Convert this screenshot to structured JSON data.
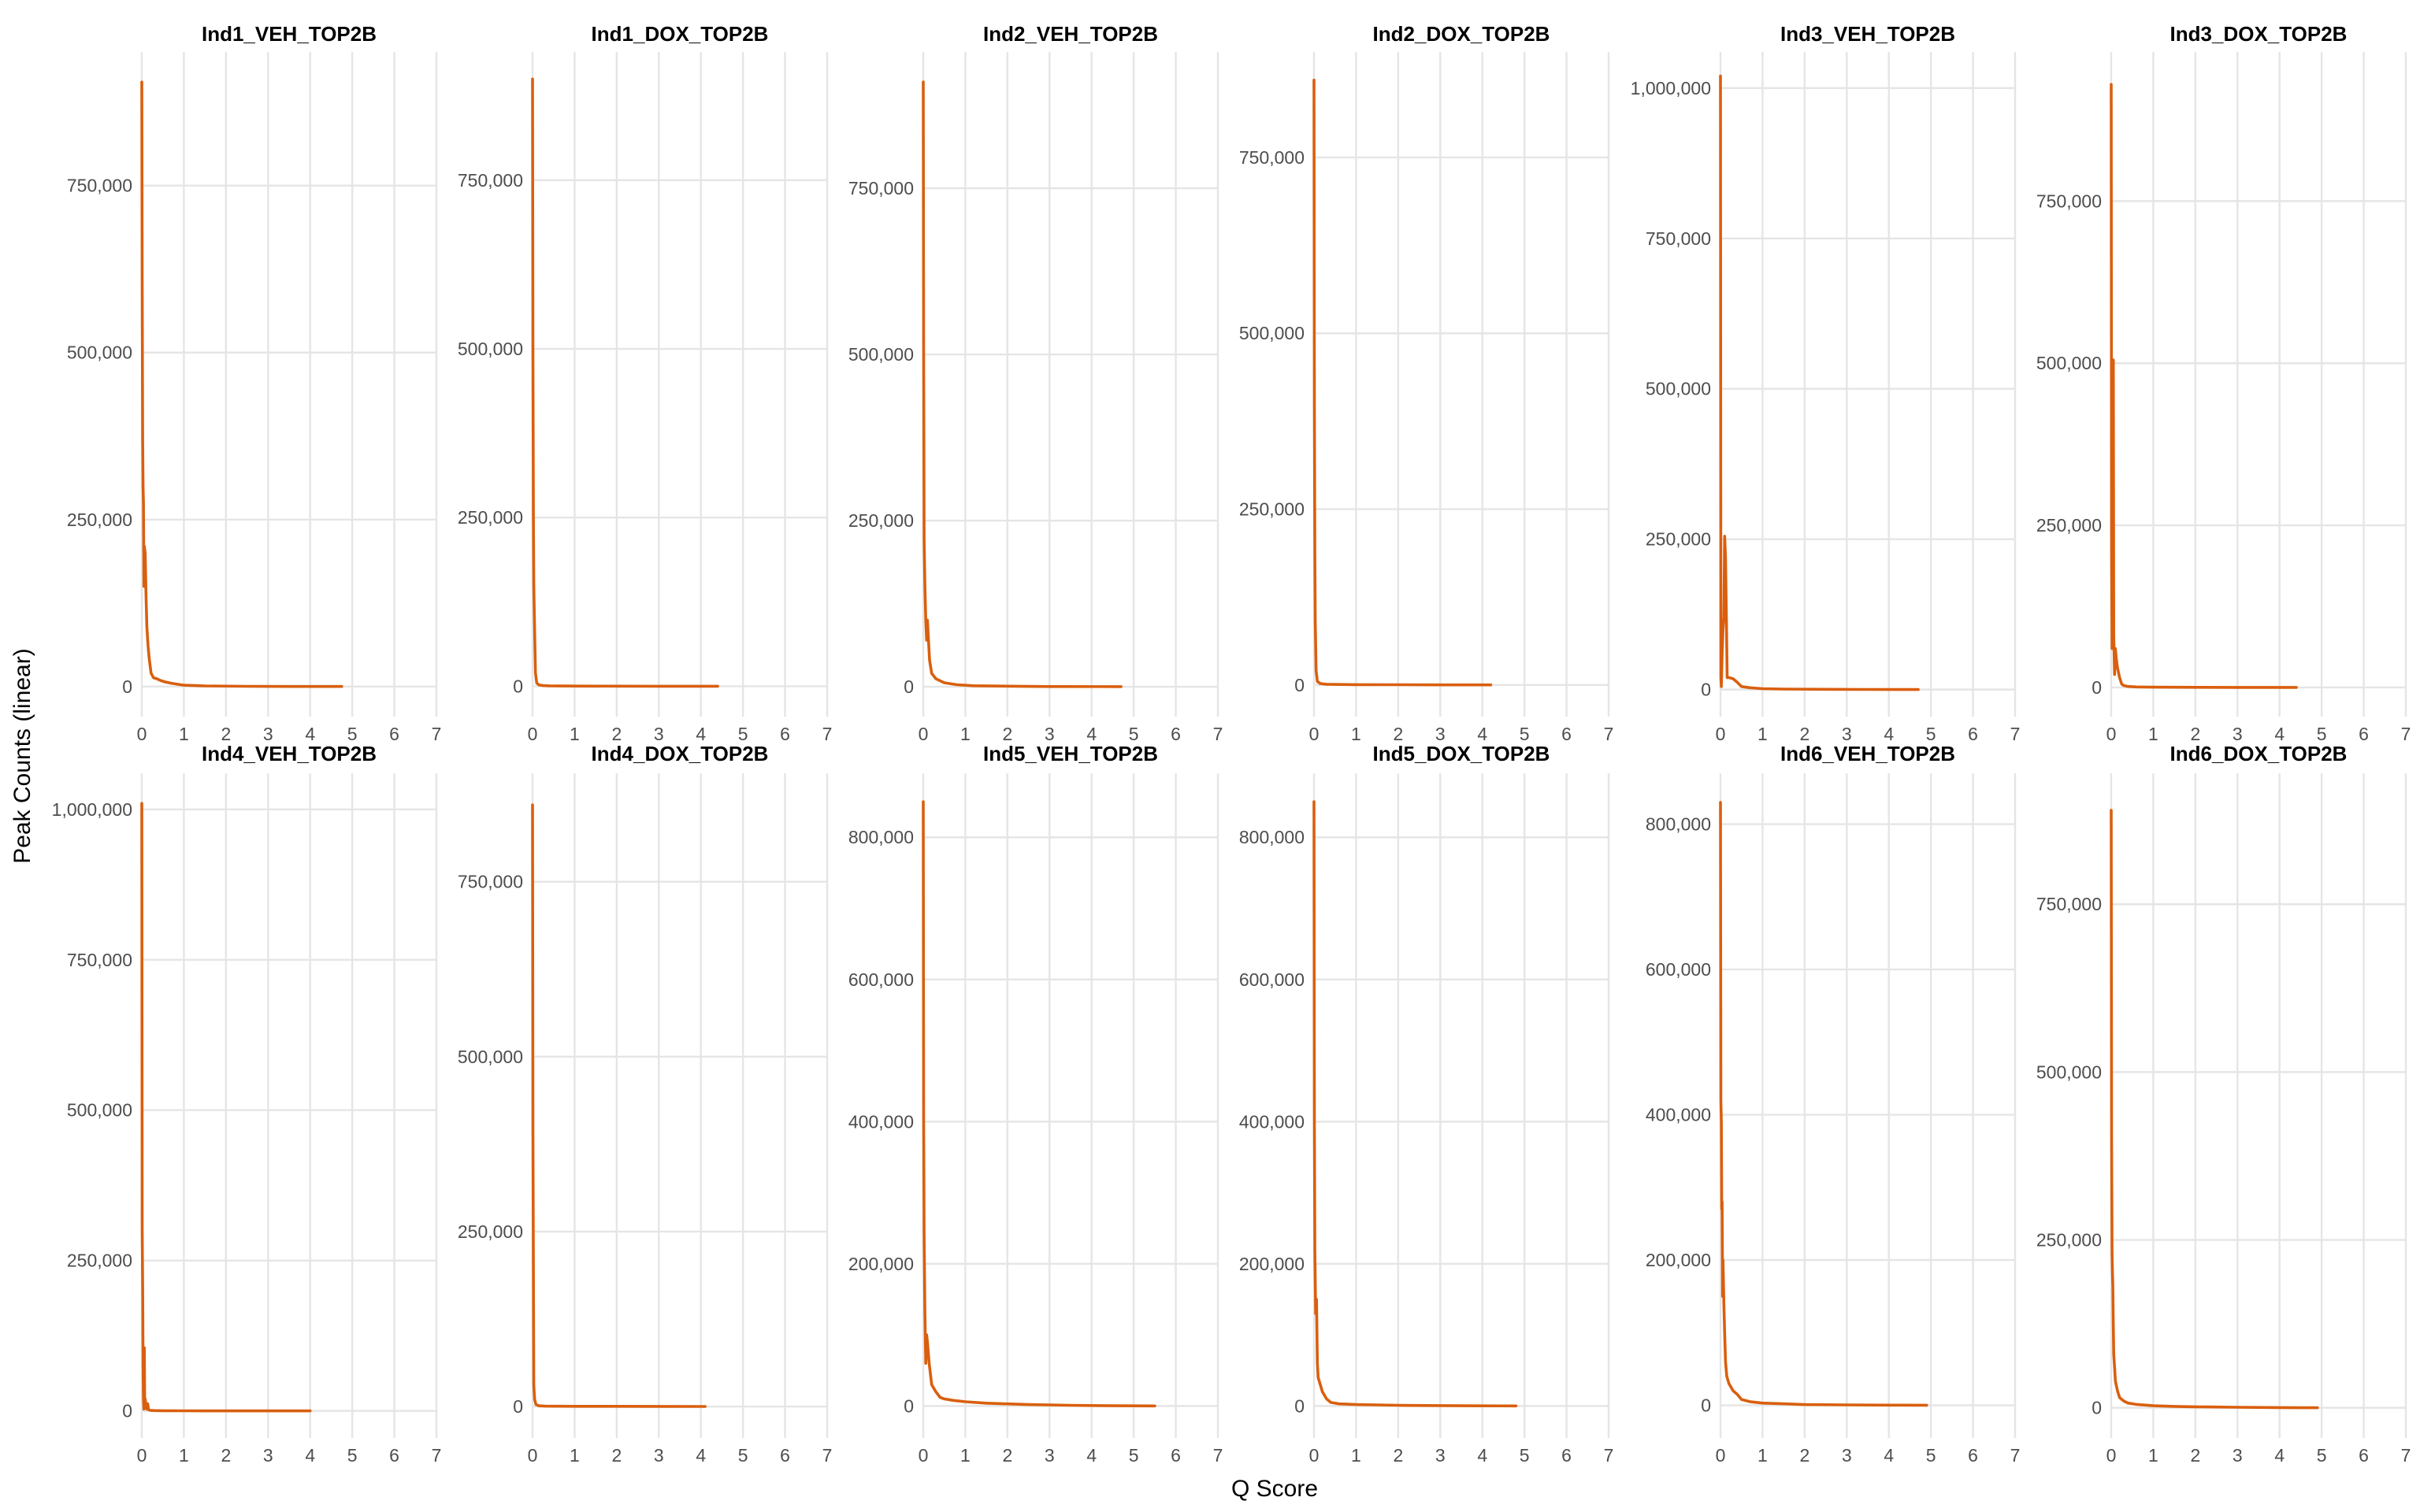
{
  "chart_data": {
    "type": "line",
    "facets": "2 rows x 6 columns, independent y scales",
    "xlabel": "Q Score",
    "ylabel": "Peak Counts (linear)",
    "xlim": [
      0,
      7
    ],
    "x_ticks": [
      0,
      1,
      2,
      3,
      4,
      5,
      6,
      7
    ],
    "grid": true,
    "line_color": "#D95F0E",
    "panels": [
      {
        "title": "Ind1_VEH_TOP2B",
        "ylim": [
          -45000,
          950000
        ],
        "y_ticks": [
          0,
          250000,
          500000,
          750000
        ],
        "y_tick_labels": [
          "0",
          "250,000",
          "500,000",
          "750,000"
        ],
        "x": [
          0,
          0.01,
          0.02,
          0.03,
          0.04,
          0.05,
          0.06,
          0.08,
          0.1,
          0.12,
          0.15,
          0.18,
          0.22,
          0.28,
          0.35,
          0.45,
          0.55,
          0.7,
          1.0,
          1.5,
          2.5,
          3.5,
          4.75
        ],
        "y": [
          905000,
          600000,
          370000,
          300000,
          275000,
          150000,
          210000,
          200000,
          140000,
          90000,
          60000,
          40000,
          20000,
          13000,
          12000,
          9000,
          7000,
          5000,
          2000,
          1000,
          400,
          200,
          100
        ]
      },
      {
        "title": "Ind1_DOX_TOP2B",
        "ylim": [
          -45000,
          940000
        ],
        "y_ticks": [
          0,
          250000,
          500000,
          750000
        ],
        "y_tick_labels": [
          "0",
          "250,000",
          "500,000",
          "750,000"
        ],
        "x": [
          0,
          0.01,
          0.02,
          0.03,
          0.05,
          0.07,
          0.1,
          0.15,
          0.25,
          0.4,
          1.0,
          2.0,
          3.0,
          4.4
        ],
        "y": [
          900000,
          500000,
          250000,
          150000,
          80000,
          20000,
          5000,
          2000,
          1000,
          600,
          300,
          200,
          100,
          50
        ]
      },
      {
        "title": "Ind2_VEH_TOP2B",
        "ylim": [
          -45000,
          955000
        ],
        "y_ticks": [
          0,
          250000,
          500000,
          750000
        ],
        "y_tick_labels": [
          "0",
          "250,000",
          "500,000",
          "750,000"
        ],
        "x": [
          0,
          0.01,
          0.02,
          0.04,
          0.06,
          0.08,
          0.1,
          0.15,
          0.2,
          0.3,
          0.5,
          0.8,
          1.2,
          2.0,
          3.0,
          4.7
        ],
        "y": [
          910000,
          500000,
          220000,
          150000,
          100000,
          70000,
          100000,
          40000,
          20000,
          12000,
          6000,
          3000,
          1500,
          800,
          300,
          100
        ]
      },
      {
        "title": "Ind2_DOX_TOP2B",
        "ylim": [
          -45000,
          900000
        ],
        "y_ticks": [
          0,
          250000,
          500000,
          750000
        ],
        "y_tick_labels": [
          "0",
          "250,000",
          "500,000",
          "750,000"
        ],
        "x": [
          0,
          0.01,
          0.02,
          0.03,
          0.05,
          0.08,
          0.15,
          0.3,
          1.0,
          2.0,
          3.0,
          4.2
        ],
        "y": [
          860000,
          400000,
          185000,
          90000,
          20000,
          5000,
          2000,
          1000,
          500,
          300,
          150,
          80
        ]
      },
      {
        "title": "Ind3_VEH_TOP2B",
        "ylim": [
          -45000,
          1060000
        ],
        "y_ticks": [
          0,
          250000,
          500000,
          750000,
          1000000
        ],
        "y_tick_labels": [
          "0",
          "250,000",
          "500,000",
          "750,000",
          "1,000,000"
        ],
        "x": [
          0,
          0.01,
          0.02,
          0.04,
          0.06,
          0.08,
          0.1,
          0.12,
          0.14,
          0.16,
          0.2,
          0.3,
          0.4,
          0.5,
          0.7,
          1.0,
          1.5,
          2.5,
          3.5,
          4.7
        ],
        "y": [
          1020000,
          20000,
          5000,
          60000,
          100000,
          120000,
          255000,
          220000,
          120000,
          20000,
          20000,
          18000,
          12000,
          5000,
          3000,
          1500,
          800,
          400,
          200,
          100
        ]
      },
      {
        "title": "Ind3_DOX_TOP2B",
        "ylim": [
          -45000,
          980000
        ],
        "y_ticks": [
          0,
          250000,
          500000,
          750000
        ],
        "y_tick_labels": [
          "0",
          "250,000",
          "500,000",
          "750,000"
        ],
        "x": [
          0,
          0.01,
          0.02,
          0.03,
          0.04,
          0.05,
          0.06,
          0.08,
          0.1,
          0.12,
          0.15,
          0.2,
          0.25,
          0.3,
          0.4,
          0.6,
          1.0,
          2.0,
          3.0,
          4.4
        ],
        "y": [
          930000,
          200000,
          60000,
          100000,
          300000,
          505000,
          80000,
          20000,
          60000,
          45000,
          30000,
          15000,
          5000,
          3000,
          1500,
          800,
          400,
          200,
          100,
          50
        ]
      },
      {
        "title": "Ind4_VEH_TOP2B",
        "ylim": [
          -45000,
          1060000
        ],
        "y_ticks": [
          0,
          250000,
          500000,
          750000,
          1000000
        ],
        "y_tick_labels": [
          "0",
          "250,000",
          "500,000",
          "750,000",
          "1,000,000"
        ],
        "x": [
          0,
          0.01,
          0.02,
          0.03,
          0.04,
          0.05,
          0.06,
          0.07,
          0.08,
          0.1,
          0.12,
          0.14,
          0.16,
          0.2,
          0.3,
          0.5,
          1.0,
          2.0,
          3.0,
          4.0
        ],
        "y": [
          1010000,
          300000,
          205000,
          80000,
          20000,
          3000,
          105000,
          5000,
          20000,
          8000,
          3000,
          12000,
          2000,
          1000,
          600,
          300,
          200,
          100,
          60,
          30
        ]
      },
      {
        "title": "Ind4_DOX_TOP2B",
        "ylim": [
          -45000,
          905000
        ],
        "y_ticks": [
          0,
          250000,
          500000,
          750000
        ],
        "y_tick_labels": [
          "0",
          "250,000",
          "500,000",
          "750,000"
        ],
        "x": [
          0,
          0.01,
          0.02,
          0.03,
          0.05,
          0.08,
          0.15,
          0.3,
          1.0,
          2.0,
          3.0,
          4.1
        ],
        "y": [
          860000,
          400000,
          200000,
          30000,
          10000,
          3000,
          1000,
          500,
          300,
          200,
          100,
          50
        ]
      },
      {
        "title": "Ind5_VEH_TOP2B",
        "ylim": [
          -45000,
          890000
        ],
        "y_ticks": [
          0,
          200000,
          400000,
          600000,
          800000
        ],
        "y_tick_labels": [
          "0",
          "200,000",
          "400,000",
          "600,000",
          "800,000"
        ],
        "x": [
          0,
          0.01,
          0.02,
          0.04,
          0.06,
          0.08,
          0.1,
          0.14,
          0.2,
          0.3,
          0.4,
          0.5,
          0.7,
          1.0,
          1.5,
          2.0,
          2.5,
          3.0,
          3.5,
          4.0,
          4.5,
          5.5
        ],
        "y": [
          850000,
          400000,
          240000,
          130000,
          60000,
          100000,
          90000,
          60000,
          30000,
          20000,
          12000,
          10000,
          8000,
          6000,
          4000,
          3000,
          2000,
          1500,
          1000,
          600,
          300,
          100
        ]
      },
      {
        "title": "Ind5_DOX_TOP2B",
        "ylim": [
          -45000,
          890000
        ],
        "y_ticks": [
          0,
          200000,
          400000,
          600000,
          800000
        ],
        "y_tick_labels": [
          "0",
          "200,000",
          "400,000",
          "600,000",
          "800,000"
        ],
        "x": [
          0,
          0.01,
          0.02,
          0.04,
          0.06,
          0.08,
          0.1,
          0.15,
          0.2,
          0.3,
          0.4,
          0.6,
          0.8,
          1.0,
          1.5,
          2.0,
          3.0,
          4.0,
          4.8
        ],
        "y": [
          850000,
          400000,
          220000,
          130000,
          150000,
          60000,
          40000,
          30000,
          20000,
          10000,
          5000,
          3000,
          2500,
          2000,
          1500,
          1000,
          500,
          200,
          100
        ]
      },
      {
        "title": "Ind6_VEH_TOP2B",
        "ylim": [
          -45000,
          870000
        ],
        "y_ticks": [
          0,
          200000,
          400000,
          600000,
          800000
        ],
        "y_tick_labels": [
          "0",
          "200,000",
          "400,000",
          "600,000",
          "800,000"
        ],
        "x": [
          0,
          0.01,
          0.02,
          0.03,
          0.04,
          0.05,
          0.06,
          0.08,
          0.1,
          0.12,
          0.15,
          0.2,
          0.3,
          0.4,
          0.5,
          0.7,
          1.0,
          1.5,
          2.0,
          3.0,
          4.0,
          4.9
        ],
        "y": [
          830000,
          420000,
          390000,
          270000,
          280000,
          150000,
          200000,
          140000,
          100000,
          60000,
          40000,
          30000,
          20000,
          15000,
          8000,
          5000,
          3000,
          2000,
          1000,
          500,
          200,
          100
        ]
      },
      {
        "title": "Ind6_DOX_TOP2B",
        "ylim": [
          -45000,
          945000
        ],
        "y_ticks": [
          0,
          250000,
          500000,
          750000
        ],
        "y_tick_labels": [
          "0",
          "250,000",
          "500,000",
          "750,000"
        ],
        "x": [
          0,
          0.01,
          0.02,
          0.03,
          0.04,
          0.05,
          0.06,
          0.08,
          0.1,
          0.15,
          0.2,
          0.3,
          0.4,
          0.6,
          0.8,
          1.0,
          1.5,
          2.0,
          3.0,
          4.0,
          4.9
        ],
        "y": [
          890000,
          400000,
          230000,
          200000,
          180000,
          120000,
          80000,
          60000,
          40000,
          25000,
          15000,
          10000,
          7000,
          5000,
          4000,
          3000,
          2000,
          1500,
          800,
          300,
          100
        ]
      }
    ]
  }
}
